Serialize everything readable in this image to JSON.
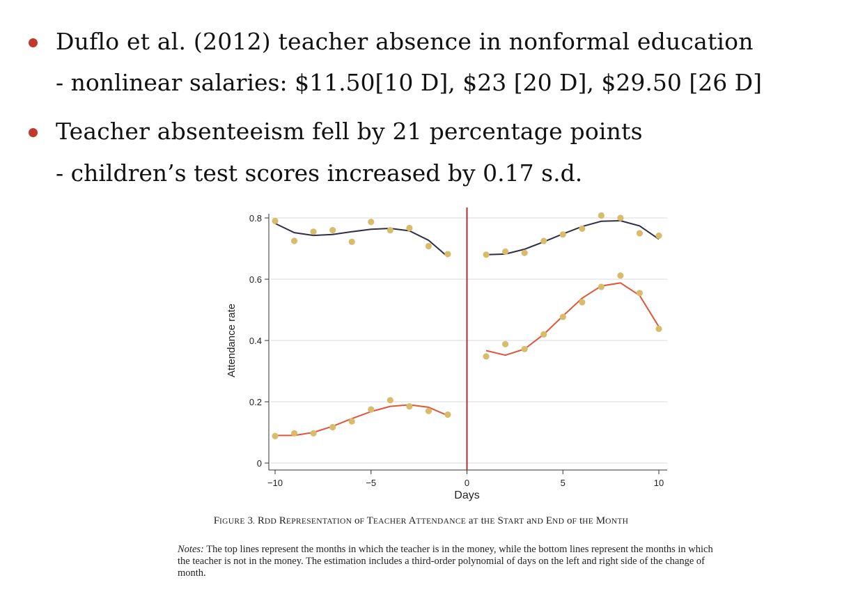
{
  "bullets": [
    {
      "text": "Duflo et al. (2012) teacher absence in nonformal education",
      "sub": "- nonlinear salaries: $11.50[10 D], $23 [20 D], $29.50 [26 D]"
    },
    {
      "text": "Teacher absenteeism fell by 21 percentage points",
      "sub": "- children’s test scores increased by 0.17 s.d."
    }
  ],
  "colors": {
    "bullet": "#c0392b",
    "top_line": "#2e2e48",
    "bottom_line": "#e0553a",
    "dots": "#d8bc6c",
    "cutoff": "#b03030",
    "grid": "#d9d9d9"
  },
  "chart_data": {
    "type": "scatter",
    "title": "",
    "xlabel": "Days",
    "ylabel": "Attendance rate",
    "xlim": [
      -10,
      10
    ],
    "ylim": [
      0,
      0.8
    ],
    "xticks": [
      -10,
      -5,
      0,
      5,
      10
    ],
    "xtick_labels": [
      "−10",
      "−5",
      "0",
      "5",
      "10"
    ],
    "yticks": [
      0,
      0.2,
      0.4,
      0.6,
      0.8
    ],
    "ytick_labels": [
      "0",
      "0.2",
      "0.4",
      "0.6",
      "0.8"
    ],
    "grid": true,
    "cutoff_x": 0,
    "series": [
      {
        "group": "top",
        "points": [
          [
            -10,
            0.79
          ],
          [
            -9,
            0.725
          ],
          [
            -8,
            0.755
          ],
          [
            -7,
            0.76
          ],
          [
            -6,
            0.722
          ],
          [
            -5,
            0.787
          ],
          [
            -4,
            0.76
          ],
          [
            -3,
            0.767
          ],
          [
            -2,
            0.708
          ],
          [
            -1,
            0.682
          ],
          [
            1,
            0.68
          ],
          [
            2,
            0.69
          ],
          [
            3,
            0.686
          ],
          [
            4,
            0.725
          ],
          [
            5,
            0.746
          ],
          [
            6,
            0.765
          ],
          [
            7,
            0.808
          ],
          [
            8,
            0.8
          ],
          [
            9,
            0.75
          ],
          [
            10,
            0.742
          ]
        ],
        "fit_left": [
          [
            -10,
            0.782
          ],
          [
            -9,
            0.752
          ],
          [
            -8,
            0.743
          ],
          [
            -7,
            0.746
          ],
          [
            -6,
            0.755
          ],
          [
            -5,
            0.763
          ],
          [
            -4,
            0.766
          ],
          [
            -3,
            0.758
          ],
          [
            -2,
            0.727
          ],
          [
            -1,
            0.673
          ]
        ],
        "fit_right": [
          [
            1,
            0.68
          ],
          [
            2,
            0.682
          ],
          [
            3,
            0.698
          ],
          [
            4,
            0.722
          ],
          [
            5,
            0.748
          ],
          [
            6,
            0.772
          ],
          [
            7,
            0.789
          ],
          [
            8,
            0.791
          ],
          [
            9,
            0.774
          ],
          [
            10,
            0.731
          ]
        ]
      },
      {
        "group": "bottom",
        "points": [
          [
            -10,
            0.088
          ],
          [
            -9,
            0.097
          ],
          [
            -8,
            0.097
          ],
          [
            -7,
            0.117
          ],
          [
            -6,
            0.136
          ],
          [
            -5,
            0.175
          ],
          [
            -4,
            0.205
          ],
          [
            -3,
            0.185
          ],
          [
            -2,
            0.17
          ],
          [
            -1,
            0.158
          ]
        ],
        "points_right": [
          [
            1,
            0.348
          ],
          [
            2,
            0.388
          ],
          [
            3,
            0.372
          ],
          [
            4,
            0.42
          ],
          [
            5,
            0.477
          ],
          [
            6,
            0.525
          ],
          [
            7,
            0.575
          ],
          [
            8,
            0.612
          ],
          [
            9,
            0.555
          ],
          [
            10,
            0.438
          ]
        ],
        "fit_left": [
          [
            -10,
            0.09
          ],
          [
            -9,
            0.09
          ],
          [
            -8,
            0.1
          ],
          [
            -7,
            0.12
          ],
          [
            -6,
            0.145
          ],
          [
            -5,
            0.168
          ],
          [
            -4,
            0.185
          ],
          [
            -3,
            0.19
          ],
          [
            -2,
            0.182
          ],
          [
            -1,
            0.155
          ]
        ],
        "fit_right": [
          [
            1,
            0.367
          ],
          [
            2,
            0.352
          ],
          [
            3,
            0.372
          ],
          [
            4,
            0.42
          ],
          [
            5,
            0.48
          ],
          [
            6,
            0.538
          ],
          [
            7,
            0.578
          ],
          [
            8,
            0.588
          ],
          [
            9,
            0.547
          ],
          [
            10,
            0.445
          ]
        ]
      }
    ]
  },
  "figure": {
    "caption_num": "Figure 3.",
    "caption_title": "RDD Representation of Teacher Attendance at the Start and End of the Month",
    "notes_label": "Notes:",
    "notes_text": "The top lines represent the months in which the teacher is in the money, while the bottom lines represent the months in which the teacher is not in the money. The estimation includes a third-order polynomial of days on the left and right side of the change of month."
  }
}
